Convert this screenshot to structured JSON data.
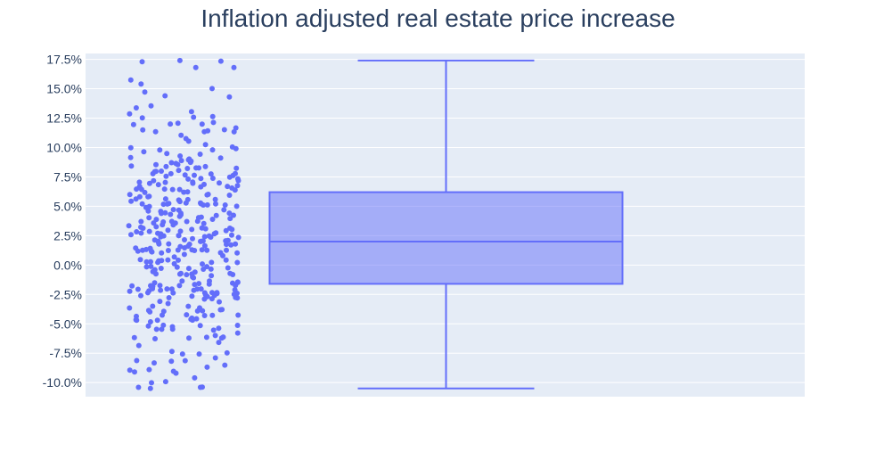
{
  "chart_data": {
    "type": "box",
    "title": "Inflation adjusted real estate price increase",
    "xlabel": "",
    "ylabel": "",
    "ylim": [
      -11.2,
      18.0
    ],
    "y_tick_values": [
      17.5,
      15.0,
      12.5,
      10.0,
      7.5,
      5.0,
      2.5,
      0.0,
      -2.5,
      -5.0,
      -7.5,
      -10.0
    ],
    "y_tick_labels": [
      "17.5%",
      "15.0%",
      "12.5%",
      "10.0%",
      "7.5%",
      "5.0%",
      "2.5%",
      "0.0%",
      "-2.5%",
      "-5.0%",
      "-7.5%",
      "-10.0%"
    ],
    "grid": true,
    "box": {
      "min": -10.5,
      "q1": -1.6,
      "median": 2.0,
      "q3": 6.2,
      "max": 17.4,
      "points_shown": "all"
    },
    "colors": {
      "plot_bg": "#e5ecf6",
      "grid": "#ffffff",
      "marker": "#636efa",
      "box_fill": "rgba(99,110,250,0.5)",
      "box_line": "#636efa",
      "text": "#2a3f5f"
    }
  }
}
